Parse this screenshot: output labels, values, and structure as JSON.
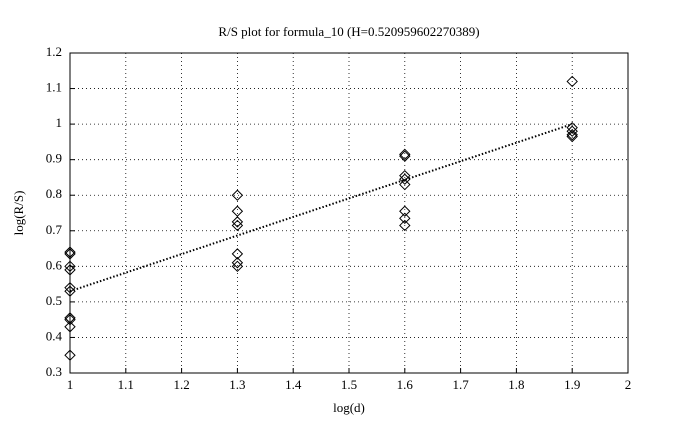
{
  "chart_data": {
    "type": "scatter",
    "title": "R/S plot for formula_10 (H=0.520959602270389)",
    "x_label": "log(d)",
    "y_label": "log(R/S)",
    "xlim": [
      1,
      2
    ],
    "ylim": [
      0.3,
      1.2
    ],
    "xticks": [
      1,
      1.1,
      1.2,
      1.3,
      1.4,
      1.5,
      1.6,
      1.7,
      1.8,
      1.9,
      2
    ],
    "yticks": [
      0.3,
      0.4,
      0.5,
      0.6,
      0.7,
      0.8,
      0.9,
      1,
      1.1,
      1.2
    ],
    "grid": true,
    "series": [
      {
        "marker": "diamond",
        "color": "#000000",
        "x": [
          1,
          1,
          1,
          1,
          1,
          1,
          1,
          1,
          1,
          1,
          1.3,
          1.3,
          1.3,
          1.3,
          1.3,
          1.3,
          1.3,
          1.6,
          1.6,
          1.6,
          1.6,
          1.6,
          1.6,
          1.6,
          1.6,
          1.9,
          1.9,
          1.9,
          1.9,
          1.9
        ],
        "values": [
          0.64,
          0.635,
          0.6,
          0.59,
          0.54,
          0.53,
          0.455,
          0.45,
          0.43,
          0.35,
          0.8,
          0.755,
          0.725,
          0.715,
          0.635,
          0.61,
          0.6,
          0.915,
          0.91,
          0.855,
          0.845,
          0.83,
          0.755,
          0.735,
          0.715,
          1.12,
          0.99,
          0.98,
          0.97,
          0.965
        ]
      },
      {
        "marker": "dotted-line",
        "color": "#000000",
        "x": [
          1,
          1.9
        ],
        "values": [
          0.53,
          1.0
        ]
      }
    ]
  }
}
